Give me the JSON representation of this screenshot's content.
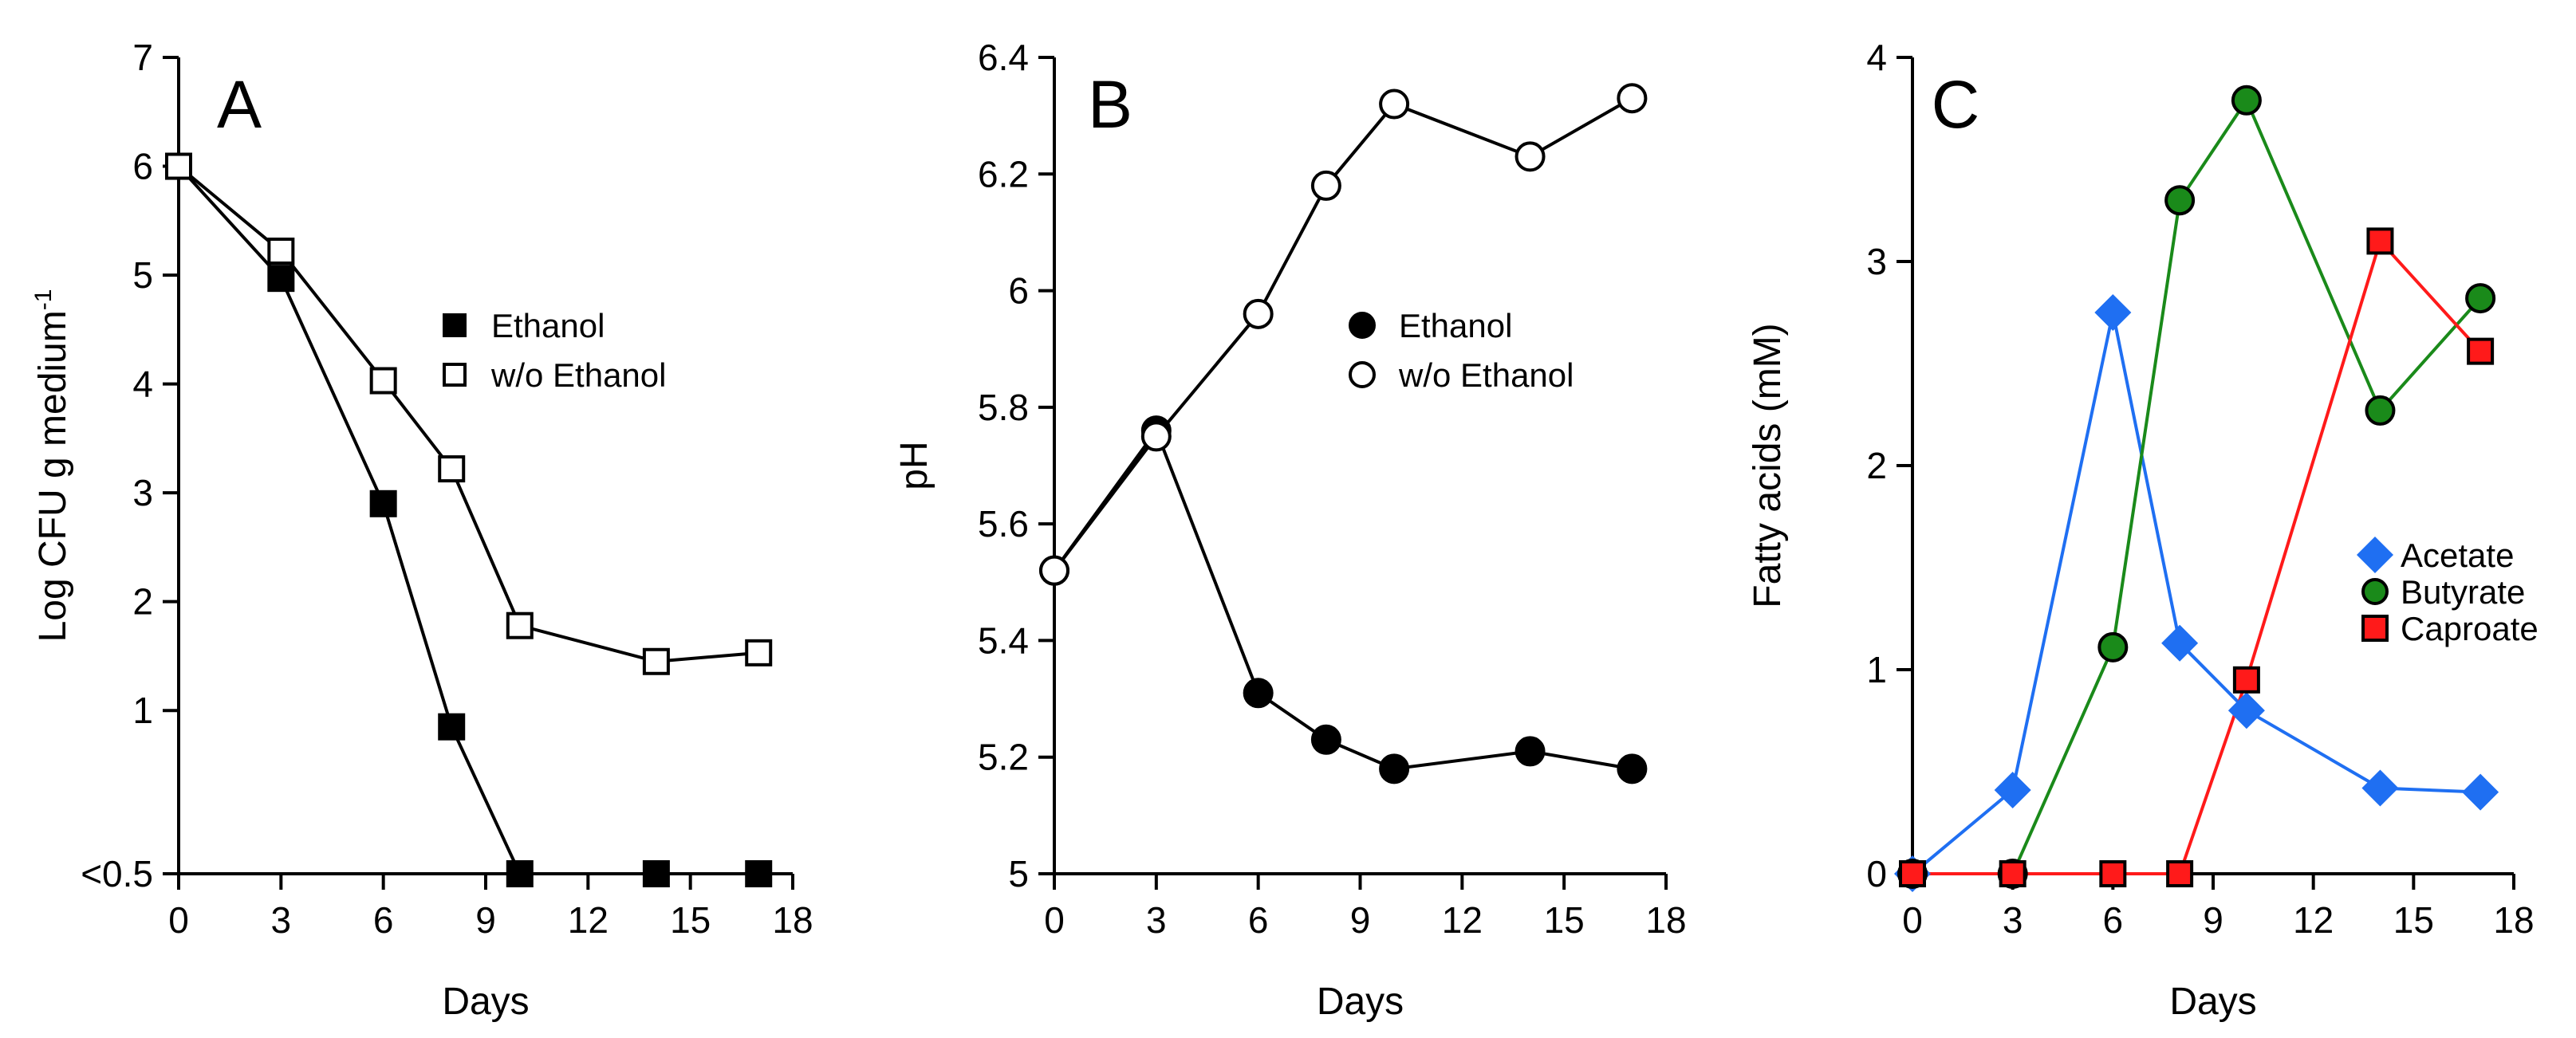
{
  "chart_data": [
    {
      "type": "line",
      "panel": "A",
      "title": "A",
      "xlabel": "Days",
      "ylabel": "Log CFU g medium-1",
      "ylabel_main": "Log CFU g medium",
      "ylabel_sup": "-1",
      "xlim": [
        0,
        18
      ],
      "ylim": [
        -0.5,
        7
      ],
      "xticks": [
        0,
        3,
        6,
        9,
        12,
        15,
        18
      ],
      "xtick_labels": [
        "0",
        "3",
        "6",
        "9",
        "12",
        "15",
        "18"
      ],
      "yticks": [
        -0.5,
        1,
        2,
        3,
        4,
        5,
        6,
        7
      ],
      "ytick_labels": [
        "<0.5",
        "1",
        "2",
        "3",
        "4",
        "5",
        "6",
        "7"
      ],
      "grid": false,
      "legend_position": "center-right",
      "series": [
        {
          "name": "Ethanol",
          "marker": "square",
          "filled": true,
          "color": "#000000",
          "x": [
            0,
            3,
            6,
            8,
            10,
            14,
            17
          ],
          "y": [
            6.0,
            4.97,
            2.9,
            0.85,
            -0.5,
            -0.5,
            -0.5
          ]
        },
        {
          "name": "w/o Ethanol",
          "marker": "square",
          "filled": false,
          "color": "#000000",
          "x": [
            0,
            3,
            6,
            8,
            10,
            14,
            17
          ],
          "y": [
            6.0,
            5.22,
            4.03,
            3.22,
            1.78,
            1.45,
            1.53
          ]
        }
      ]
    },
    {
      "type": "line",
      "panel": "B",
      "title": "B",
      "xlabel": "Days",
      "ylabel": "pH",
      "xlim": [
        0,
        18
      ],
      "ylim": [
        5,
        6.4
      ],
      "xticks": [
        0,
        3,
        6,
        9,
        12,
        15,
        18
      ],
      "xtick_labels": [
        "0",
        "3",
        "6",
        "9",
        "12",
        "15",
        "18"
      ],
      "yticks": [
        5,
        5.2,
        5.4,
        5.6,
        5.8,
        6,
        6.2,
        6.4
      ],
      "ytick_labels": [
        "5",
        "5.2",
        "5.4",
        "5.6",
        "5.8",
        "6",
        "6.2",
        "6.4"
      ],
      "grid": false,
      "legend_position": "center-right",
      "series": [
        {
          "name": "Ethanol",
          "marker": "circle",
          "filled": true,
          "color": "#000000",
          "x": [
            0,
            3,
            6,
            8,
            10,
            14,
            17
          ],
          "y": [
            5.52,
            5.76,
            5.31,
            5.23,
            5.18,
            5.21,
            5.18
          ]
        },
        {
          "name": "w/o Ethanol",
          "marker": "circle",
          "filled": false,
          "color": "#000000",
          "x": [
            0,
            3,
            6,
            8,
            10,
            14,
            17
          ],
          "y": [
            5.52,
            5.75,
            5.96,
            6.18,
            6.32,
            6.23,
            6.33
          ]
        }
      ]
    },
    {
      "type": "line",
      "panel": "C",
      "title": "C",
      "xlabel": "Days",
      "ylabel": "Fatty acids (mM)",
      "xlim": [
        0,
        18
      ],
      "ylim": [
        0,
        4
      ],
      "xticks": [
        0,
        3,
        6,
        9,
        12,
        15,
        18
      ],
      "xtick_labels": [
        "0",
        "3",
        "6",
        "9",
        "12",
        "15",
        "18"
      ],
      "yticks": [
        0,
        1,
        2,
        3,
        4
      ],
      "ytick_labels": [
        "0",
        "1",
        "2",
        "3",
        "4"
      ],
      "grid": false,
      "legend_position": "center-right",
      "series": [
        {
          "name": "Acetate",
          "marker": "diamond",
          "filled": true,
          "color": "#1f6ff2",
          "x": [
            0,
            3,
            6,
            8,
            10,
            14,
            17
          ],
          "y": [
            0,
            0.41,
            2.75,
            1.13,
            0.8,
            0.42,
            0.4
          ]
        },
        {
          "name": "Butyrate",
          "marker": "circle",
          "filled": true,
          "color": "#1a8a1a",
          "x": [
            0,
            3,
            6,
            8,
            10,
            14,
            17
          ],
          "y": [
            0,
            0,
            1.11,
            3.3,
            3.79,
            2.27,
            2.82
          ]
        },
        {
          "name": "Caproate",
          "marker": "square",
          "filled": true,
          "color": "#ff1a1a",
          "x": [
            0,
            3,
            6,
            8,
            10,
            14,
            17
          ],
          "y": [
            0,
            0,
            0,
            0,
            0.95,
            3.1,
            2.56
          ]
        }
      ]
    }
  ]
}
